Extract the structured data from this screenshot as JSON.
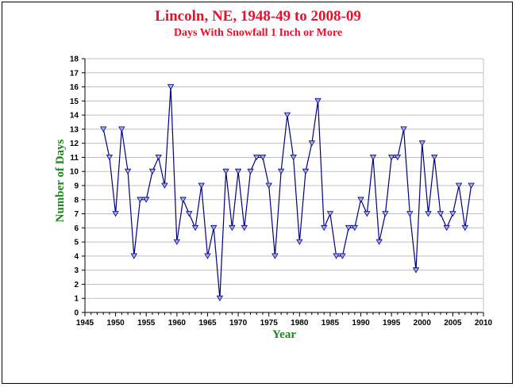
{
  "chart_data": {
    "type": "line",
    "title": "Lincoln, NE, 1948-49 to 2008-09",
    "subtitle": "Days With Snowfall 1 Inch or More",
    "xlabel": "Year",
    "ylabel": "Number of Days",
    "xlim": [
      1945,
      2010
    ],
    "ylim": [
      0,
      18
    ],
    "x_ticks": [
      1945,
      1950,
      1955,
      1960,
      1965,
      1970,
      1975,
      1980,
      1985,
      1990,
      1995,
      2000,
      2005,
      2010
    ],
    "y_ticks": [
      0,
      1,
      2,
      3,
      4,
      5,
      6,
      7,
      8,
      9,
      10,
      11,
      12,
      13,
      14,
      15,
      16,
      17,
      18
    ],
    "grid": "horizontal",
    "marker": "triangle-down",
    "line_color": "#000080",
    "marker_color": "#9fa9e8",
    "x": [
      1948,
      1949,
      1950,
      1951,
      1952,
      1953,
      1954,
      1955,
      1956,
      1957,
      1958,
      1959,
      1960,
      1961,
      1962,
      1963,
      1964,
      1965,
      1966,
      1967,
      1968,
      1969,
      1970,
      1971,
      1972,
      1973,
      1974,
      1975,
      1976,
      1977,
      1978,
      1979,
      1980,
      1981,
      1982,
      1983,
      1984,
      1985,
      1986,
      1987,
      1988,
      1989,
      1990,
      1991,
      1992,
      1993,
      1994,
      1995,
      1996,
      1997,
      1998,
      1999,
      2000,
      2001,
      2002,
      2003,
      2004,
      2005,
      2006,
      2007,
      2008
    ],
    "values": [
      13,
      11,
      7,
      13,
      10,
      4,
      8,
      8,
      10,
      11,
      9,
      16,
      5,
      8,
      7,
      6,
      9,
      4,
      6,
      1,
      10,
      6,
      10,
      6,
      10,
      11,
      11,
      9,
      4,
      10,
      14,
      11,
      5,
      10,
      12,
      15,
      6,
      7,
      4,
      4,
      6,
      6,
      8,
      7,
      11,
      5,
      7,
      11,
      11,
      13,
      7,
      3,
      12,
      7,
      11,
      7,
      6,
      7,
      9,
      6,
      9
    ]
  }
}
